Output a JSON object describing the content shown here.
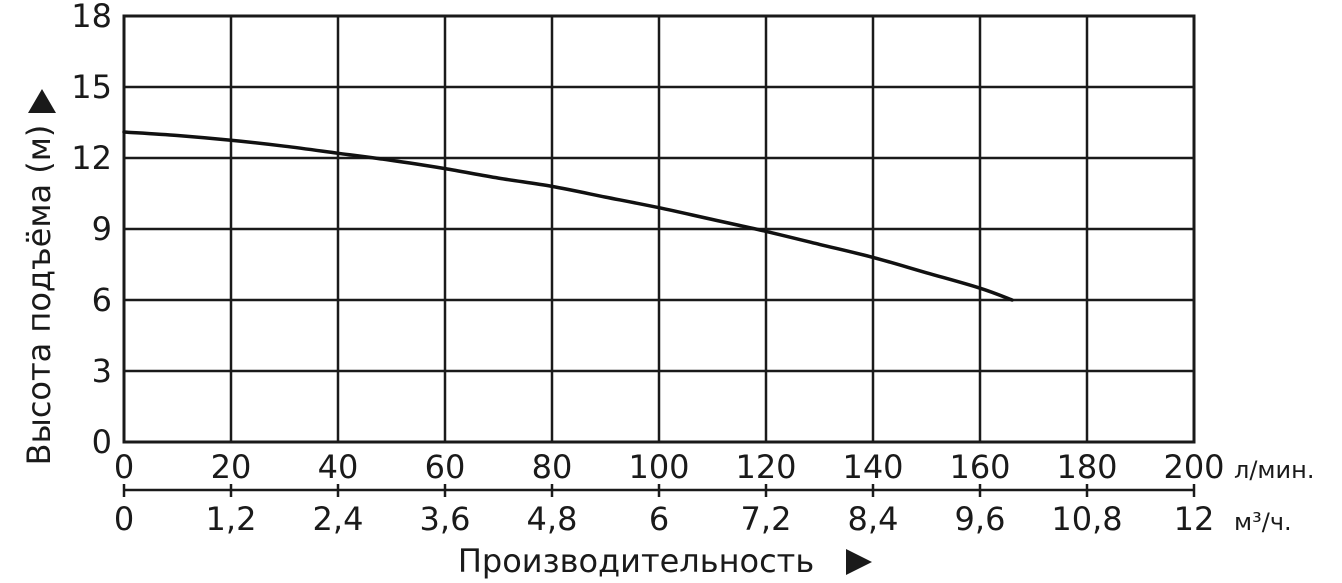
{
  "chart_data": {
    "type": "line",
    "ylabel": "Высота подъёма (м)",
    "xlabel": "Производительность",
    "y_ticks": [
      "0",
      "3",
      "6",
      "9",
      "12",
      "15",
      "18"
    ],
    "ylim": [
      0,
      18
    ],
    "x_axis_primary": {
      "ticks": [
        "0",
        "20",
        "40",
        "60",
        "80",
        "100",
        "120",
        "140",
        "160",
        "180",
        "200"
      ],
      "unit": "л/мин.",
      "xlim": [
        0,
        200
      ]
    },
    "x_axis_secondary": {
      "ticks": [
        "0",
        "1,2",
        "2,4",
        "3,6",
        "4,8",
        "6",
        "7,2",
        "8,4",
        "9,6",
        "10,8",
        "12"
      ],
      "unit": "м³/ч."
    },
    "grid": true,
    "series": [
      {
        "x": [
          0,
          10,
          20,
          30,
          40,
          50,
          60,
          70,
          80,
          90,
          100,
          110,
          120,
          130,
          140,
          150,
          160,
          166
        ],
        "y": [
          13.1,
          12.95,
          12.75,
          12.5,
          12.2,
          11.9,
          11.55,
          11.15,
          10.8,
          10.35,
          9.9,
          9.4,
          8.9,
          8.35,
          7.8,
          7.15,
          6.5,
          6.0
        ]
      }
    ]
  }
}
